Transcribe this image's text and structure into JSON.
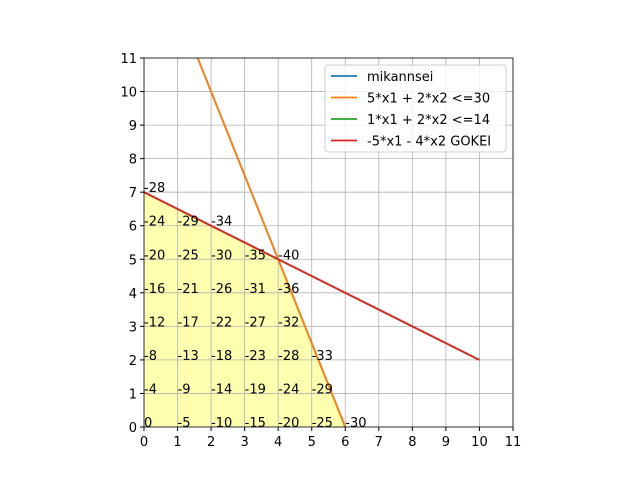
{
  "chart_data": {
    "type": "line",
    "xlim": [
      0,
      11
    ],
    "ylim": [
      0,
      11
    ],
    "xticks": [
      0,
      1,
      2,
      3,
      4,
      5,
      6,
      7,
      8,
      9,
      10,
      11
    ],
    "yticks": [
      0,
      1,
      2,
      3,
      4,
      5,
      6,
      7,
      8,
      9,
      10,
      11
    ],
    "grid": true,
    "legend": "upper right",
    "region": {
      "color": "#ffffb0",
      "x": [
        0,
        0,
        4,
        6
      ],
      "y": [
        0,
        7,
        5,
        0
      ]
    },
    "series": [
      {
        "name": "mikannsei",
        "color": "#1f77b4",
        "x": [
          0,
          6
        ],
        "values": [
          15,
          0
        ]
      },
      {
        "name": "5*x1 + 2*x2 <=30",
        "color": "#ff7f0e",
        "x": [
          0,
          6
        ],
        "values": [
          15,
          0
        ]
      },
      {
        "name": "1*x1 + 2*x2 <=14",
        "color": "#2ca02c",
        "x": [
          0,
          10
        ],
        "values": [
          7,
          2
        ]
      },
      {
        "name": "-5*x1 - 4*x2 GOKEI",
        "color": "#d62728",
        "x": [
          0,
          10
        ],
        "values": [
          7,
          2
        ]
      }
    ],
    "annotations": [
      {
        "x": 0,
        "y": 0,
        "value": 0
      },
      {
        "x": 1,
        "y": 0,
        "value": -5
      },
      {
        "x": 2,
        "y": 0,
        "value": -10
      },
      {
        "x": 3,
        "y": 0,
        "value": -15
      },
      {
        "x": 4,
        "y": 0,
        "value": -20
      },
      {
        "x": 5,
        "y": 0,
        "value": -25
      },
      {
        "x": 6,
        "y": 0,
        "value": -30
      },
      {
        "x": 0,
        "y": 1,
        "value": -4
      },
      {
        "x": 1,
        "y": 1,
        "value": -9
      },
      {
        "x": 2,
        "y": 1,
        "value": -14
      },
      {
        "x": 3,
        "y": 1,
        "value": -19
      },
      {
        "x": 4,
        "y": 1,
        "value": -24
      },
      {
        "x": 5,
        "y": 1,
        "value": -29
      },
      {
        "x": 0,
        "y": 2,
        "value": -8
      },
      {
        "x": 1,
        "y": 2,
        "value": -13
      },
      {
        "x": 2,
        "y": 2,
        "value": -18
      },
      {
        "x": 3,
        "y": 2,
        "value": -23
      },
      {
        "x": 4,
        "y": 2,
        "value": -28
      },
      {
        "x": 5,
        "y": 2,
        "value": -33
      },
      {
        "x": 0,
        "y": 3,
        "value": -12
      },
      {
        "x": 1,
        "y": 3,
        "value": -17
      },
      {
        "x": 2,
        "y": 3,
        "value": -22
      },
      {
        "x": 3,
        "y": 3,
        "value": -27
      },
      {
        "x": 4,
        "y": 3,
        "value": -32
      },
      {
        "x": 0,
        "y": 4,
        "value": -16
      },
      {
        "x": 1,
        "y": 4,
        "value": -21
      },
      {
        "x": 2,
        "y": 4,
        "value": -26
      },
      {
        "x": 3,
        "y": 4,
        "value": -31
      },
      {
        "x": 4,
        "y": 4,
        "value": -36
      },
      {
        "x": 0,
        "y": 5,
        "value": -20
      },
      {
        "x": 1,
        "y": 5,
        "value": -25
      },
      {
        "x": 2,
        "y": 5,
        "value": -30
      },
      {
        "x": 3,
        "y": 5,
        "value": -35
      },
      {
        "x": 4,
        "y": 5,
        "value": -40
      },
      {
        "x": 0,
        "y": 6,
        "value": -24
      },
      {
        "x": 1,
        "y": 6,
        "value": -29
      },
      {
        "x": 2,
        "y": 6,
        "value": -34
      },
      {
        "x": 0,
        "y": 7,
        "value": -28
      }
    ]
  }
}
